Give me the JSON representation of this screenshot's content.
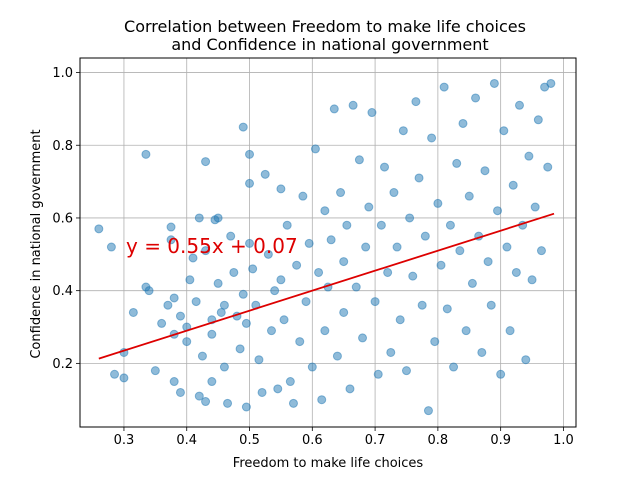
{
  "chart_data": {
    "type": "scatter",
    "title_line1": "Correlation between Freedom to make life choices",
    "title_line2": "and Confidence in national government",
    "xlabel": "Freedom to make life choices",
    "ylabel": "Confidence in national government",
    "xlim": [
      0.23,
      1.02
    ],
    "ylim": [
      0.025,
      1.04
    ],
    "x_ticks": [
      0.3,
      0.4,
      0.5,
      0.6,
      0.7,
      0.8,
      0.9,
      1.0
    ],
    "x_tick_labels": [
      "0.3",
      "0.4",
      "0.5",
      "0.6",
      "0.7",
      "0.8",
      "0.9",
      "1.0"
    ],
    "y_ticks": [
      0.2,
      0.4,
      0.6,
      0.8,
      1.0
    ],
    "y_tick_labels": [
      "0.2",
      "0.4",
      "0.6",
      "0.8",
      "1.0"
    ],
    "grid": true,
    "legend": "none",
    "series": [
      {
        "marker_color": "#1f77b4",
        "alpha": 0.5,
        "sampled": true,
        "points": [
          [
            0.26,
            0.57
          ],
          [
            0.28,
            0.52
          ],
          [
            0.285,
            0.17
          ],
          [
            0.3,
            0.23
          ],
          [
            0.3,
            0.16
          ],
          [
            0.315,
            0.34
          ],
          [
            0.335,
            0.775
          ],
          [
            0.335,
            0.41
          ],
          [
            0.34,
            0.4
          ],
          [
            0.35,
            0.18
          ],
          [
            0.36,
            0.31
          ],
          [
            0.37,
            0.36
          ],
          [
            0.375,
            0.575
          ],
          [
            0.375,
            0.54
          ],
          [
            0.38,
            0.38
          ],
          [
            0.38,
            0.28
          ],
          [
            0.38,
            0.15
          ],
          [
            0.39,
            0.33
          ],
          [
            0.39,
            0.12
          ],
          [
            0.4,
            0.3
          ],
          [
            0.4,
            0.26
          ],
          [
            0.405,
            0.43
          ],
          [
            0.41,
            0.49
          ],
          [
            0.415,
            0.37
          ],
          [
            0.42,
            0.6
          ],
          [
            0.42,
            0.11
          ],
          [
            0.425,
            0.22
          ],
          [
            0.43,
            0.755
          ],
          [
            0.43,
            0.51
          ],
          [
            0.43,
            0.095
          ],
          [
            0.44,
            0.32
          ],
          [
            0.44,
            0.28
          ],
          [
            0.44,
            0.15
          ],
          [
            0.445,
            0.595
          ],
          [
            0.45,
            0.6
          ],
          [
            0.45,
            0.42
          ],
          [
            0.455,
            0.34
          ],
          [
            0.46,
            0.36
          ],
          [
            0.46,
            0.19
          ],
          [
            0.465,
            0.09
          ],
          [
            0.47,
            0.55
          ],
          [
            0.475,
            0.45
          ],
          [
            0.48,
            0.33
          ],
          [
            0.485,
            0.24
          ],
          [
            0.49,
            0.85
          ],
          [
            0.49,
            0.39
          ],
          [
            0.495,
            0.31
          ],
          [
            0.495,
            0.08
          ],
          [
            0.5,
            0.775
          ],
          [
            0.5,
            0.695
          ],
          [
            0.5,
            0.53
          ],
          [
            0.505,
            0.46
          ],
          [
            0.51,
            0.36
          ],
          [
            0.515,
            0.21
          ],
          [
            0.52,
            0.12
          ],
          [
            0.525,
            0.72
          ],
          [
            0.53,
            0.5
          ],
          [
            0.535,
            0.29
          ],
          [
            0.54,
            0.4
          ],
          [
            0.545,
            0.13
          ],
          [
            0.55,
            0.68
          ],
          [
            0.55,
            0.43
          ],
          [
            0.555,
            0.32
          ],
          [
            0.56,
            0.58
          ],
          [
            0.565,
            0.15
          ],
          [
            0.57,
            0.09
          ],
          [
            0.575,
            0.47
          ],
          [
            0.58,
            0.26
          ],
          [
            0.585,
            0.66
          ],
          [
            0.59,
            0.37
          ],
          [
            0.595,
            0.53
          ],
          [
            0.6,
            0.19
          ],
          [
            0.605,
            0.79
          ],
          [
            0.61,
            0.45
          ],
          [
            0.615,
            0.1
          ],
          [
            0.62,
            0.62
          ],
          [
            0.62,
            0.29
          ],
          [
            0.625,
            0.41
          ],
          [
            0.63,
            0.54
          ],
          [
            0.635,
            0.9
          ],
          [
            0.64,
            0.22
          ],
          [
            0.645,
            0.67
          ],
          [
            0.65,
            0.48
          ],
          [
            0.65,
            0.34
          ],
          [
            0.655,
            0.58
          ],
          [
            0.66,
            0.13
          ],
          [
            0.665,
            0.91
          ],
          [
            0.67,
            0.41
          ],
          [
            0.675,
            0.76
          ],
          [
            0.68,
            0.27
          ],
          [
            0.685,
            0.52
          ],
          [
            0.69,
            0.63
          ],
          [
            0.695,
            0.89
          ],
          [
            0.7,
            0.37
          ],
          [
            0.705,
            0.17
          ],
          [
            0.71,
            0.58
          ],
          [
            0.715,
            0.74
          ],
          [
            0.72,
            0.45
          ],
          [
            0.725,
            0.23
          ],
          [
            0.73,
            0.67
          ],
          [
            0.735,
            0.52
          ],
          [
            0.74,
            0.32
          ],
          [
            0.745,
            0.84
          ],
          [
            0.75,
            0.18
          ],
          [
            0.755,
            0.6
          ],
          [
            0.76,
            0.44
          ],
          [
            0.765,
            0.92
          ],
          [
            0.77,
            0.71
          ],
          [
            0.775,
            0.36
          ],
          [
            0.78,
            0.55
          ],
          [
            0.785,
            0.07
          ],
          [
            0.79,
            0.82
          ],
          [
            0.795,
            0.26
          ],
          [
            0.8,
            0.64
          ],
          [
            0.805,
            0.47
          ],
          [
            0.81,
            0.96
          ],
          [
            0.815,
            0.35
          ],
          [
            0.82,
            0.58
          ],
          [
            0.825,
            0.19
          ],
          [
            0.83,
            0.75
          ],
          [
            0.835,
            0.51
          ],
          [
            0.84,
            0.86
          ],
          [
            0.845,
            0.29
          ],
          [
            0.85,
            0.66
          ],
          [
            0.855,
            0.42
          ],
          [
            0.86,
            0.93
          ],
          [
            0.865,
            0.55
          ],
          [
            0.87,
            0.23
          ],
          [
            0.875,
            0.73
          ],
          [
            0.88,
            0.48
          ],
          [
            0.885,
            0.36
          ],
          [
            0.89,
            0.97
          ],
          [
            0.895,
            0.62
          ],
          [
            0.9,
            0.17
          ],
          [
            0.905,
            0.84
          ],
          [
            0.91,
            0.52
          ],
          [
            0.915,
            0.29
          ],
          [
            0.92,
            0.69
          ],
          [
            0.925,
            0.45
          ],
          [
            0.93,
            0.91
          ],
          [
            0.935,
            0.58
          ],
          [
            0.94,
            0.21
          ],
          [
            0.945,
            0.77
          ],
          [
            0.95,
            0.43
          ],
          [
            0.955,
            0.63
          ],
          [
            0.96,
            0.87
          ],
          [
            0.965,
            0.51
          ],
          [
            0.97,
            0.96
          ],
          [
            0.975,
            0.74
          ],
          [
            0.98,
            0.97
          ]
        ]
      }
    ],
    "trendline": {
      "label": "y = 0.55x + 0.07",
      "slope": 0.55,
      "intercept": 0.07,
      "x_range": [
        0.26,
        0.985
      ],
      "color": "#dd0000"
    }
  }
}
